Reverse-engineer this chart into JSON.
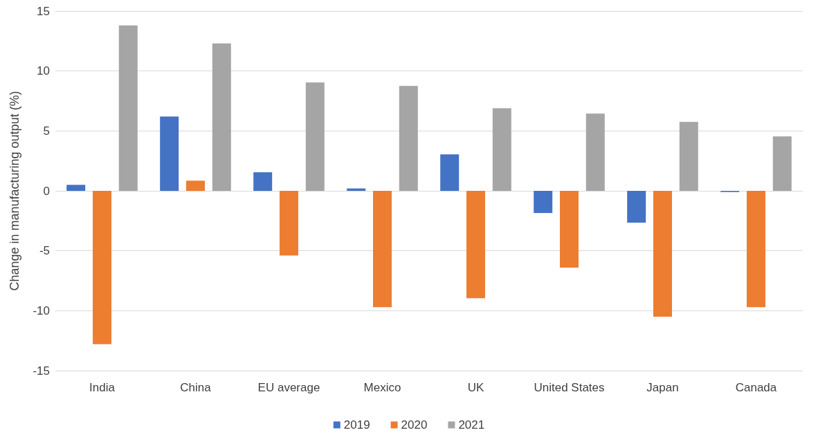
{
  "chart_data": {
    "type": "bar",
    "ylabel": "Change in manufacturing output (%)",
    "categories": [
      "India",
      "China",
      "EU average",
      "Mexico",
      "UK",
      "United States",
      "Japan",
      "Canada"
    ],
    "series": [
      {
        "name": "2019",
        "color": "#4472c4",
        "values": [
          0.5,
          6.2,
          1.55,
          0.2,
          3.05,
          -1.85,
          -2.65,
          -0.1
        ]
      },
      {
        "name": "2020",
        "color": "#ed7d31",
        "values": [
          -12.8,
          0.85,
          -5.4,
          -9.7,
          -8.95,
          -6.4,
          -10.5,
          -9.7
        ]
      },
      {
        "name": "2021",
        "color": "#a5a5a5",
        "values": [
          13.8,
          12.3,
          9.05,
          8.75,
          6.9,
          6.45,
          5.75,
          4.55
        ]
      }
    ],
    "ylim": [
      -15,
      15
    ],
    "yticks": [
      -15,
      -10,
      -5,
      0,
      5,
      10,
      15
    ],
    "grid": "y",
    "legend": "bottom"
  }
}
